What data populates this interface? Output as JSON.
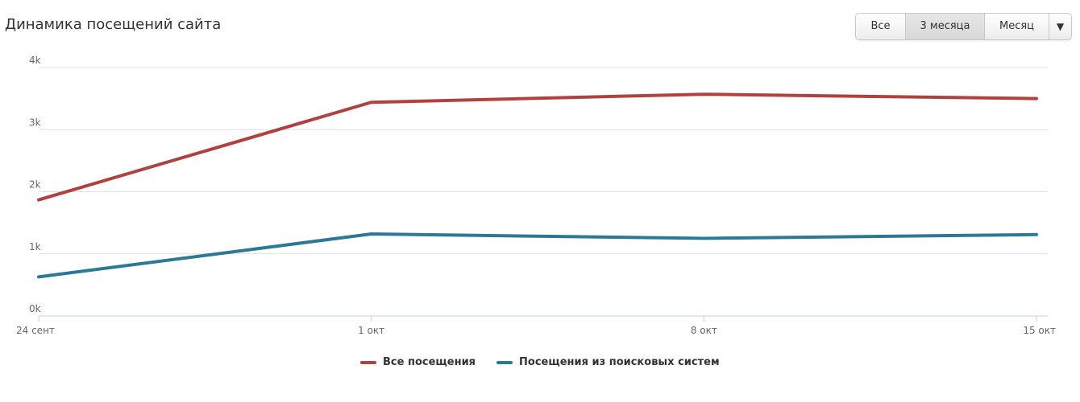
{
  "title": "Динамика посещений сайта",
  "range_buttons": [
    {
      "label": "Все",
      "active": false
    },
    {
      "label": "3 месяца",
      "active": true
    },
    {
      "label": "Месяц",
      "active": false
    }
  ],
  "dropdown_icon": "▼",
  "colors": {
    "all_visits": "#b0413e",
    "search_visits": "#2a7a97",
    "grid": "#e0e0e0",
    "axis": "#c0d0e0",
    "text": "#666666"
  },
  "chart_data": {
    "type": "line",
    "title": "",
    "x": [
      "24 сент",
      "1 окт",
      "8 окт",
      "15 окт"
    ],
    "ylim": [
      0,
      4000
    ],
    "yticks": [
      {
        "value": 0,
        "label": "0k"
      },
      {
        "value": 1000,
        "label": "1k"
      },
      {
        "value": 2000,
        "label": "2k"
      },
      {
        "value": 3000,
        "label": "3k"
      },
      {
        "value": 4000,
        "label": "4k"
      }
    ],
    "grid": true,
    "legend": "bottom",
    "series": [
      {
        "name": "Все посещения",
        "values": [
          1870,
          3440,
          3570,
          3500
        ]
      },
      {
        "name": "Посещения из поисковых систем",
        "values": [
          630,
          1320,
          1250,
          1310
        ]
      }
    ]
  }
}
